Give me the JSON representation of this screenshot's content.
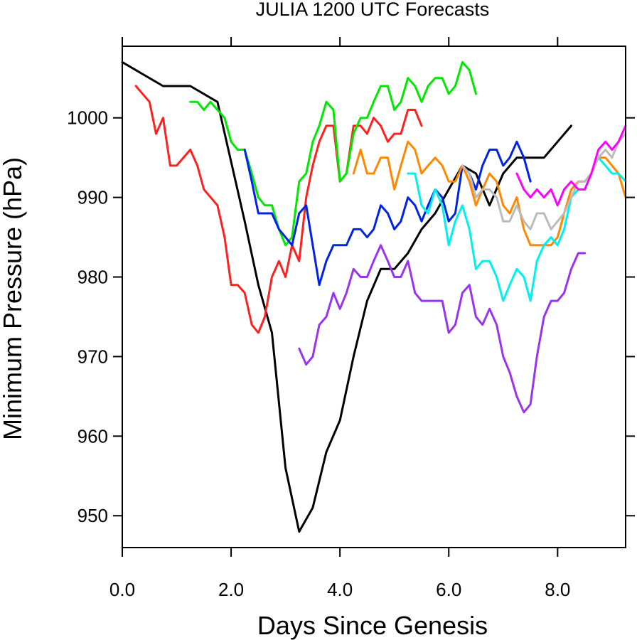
{
  "chart_data": {
    "type": "line",
    "title": "JULIA 1200 UTC Forecasts",
    "xlabel": "Days Since Genesis",
    "ylabel": "Minimum Pressure (hPa)",
    "xlim": [
      0,
      9.25
    ],
    "ylim": [
      946,
      1009
    ],
    "x_ticks": [
      "0.0",
      "2.0",
      "4.0",
      "6.0",
      "8.0"
    ],
    "y_ticks": [
      "950",
      "960",
      "970",
      "980",
      "990",
      "1000"
    ],
    "grid": false,
    "legend": "none",
    "series": [
      {
        "color": "#000000",
        "x": [
          0,
          0.75,
          1.25,
          1.75,
          2.25,
          2.5,
          2.75,
          3.0,
          3.25,
          3.5,
          3.75,
          4.0,
          4.25,
          4.5,
          4.75,
          5.0,
          5.25,
          5.5,
          5.75,
          6.0,
          6.25,
          6.5,
          6.75,
          7.0,
          7.25,
          7.5,
          7.75,
          8.0,
          8.25
        ],
        "y": [
          1007,
          1004,
          1004,
          1002,
          987,
          979,
          973,
          956,
          948,
          951,
          958,
          962,
          970,
          977,
          981,
          981,
          983,
          986,
          988,
          991,
          994,
          993,
          989,
          993,
          995,
          995,
          995,
          997,
          999
        ]
      },
      {
        "color": "#ff2020",
        "x": [
          0.25,
          0.5,
          0.62,
          0.75,
          0.88,
          1.0,
          1.25,
          1.38,
          1.5,
          1.75,
          1.88,
          2.0,
          2.12,
          2.25,
          2.38,
          2.5,
          2.62,
          2.75,
          2.88,
          3.0,
          3.12,
          3.25,
          3.38,
          3.5,
          3.62,
          3.75,
          3.88,
          4.0,
          4.12,
          4.25,
          4.38,
          4.5,
          4.62,
          4.75,
          4.88,
          5.0,
          5.12,
          5.25,
          5.38,
          5.5
        ],
        "y": [
          1004,
          1002,
          998,
          1000,
          994,
          994,
          996,
          994,
          991,
          989,
          985,
          979,
          979,
          978,
          974,
          973,
          975,
          980,
          982,
          980,
          984,
          982,
          990,
          994,
          997,
          999,
          999,
          992,
          993,
          999,
          999,
          998,
          1000,
          999,
          997,
          998,
          998,
          1001,
          1001,
          999
        ]
      },
      {
        "color": "#00e800",
        "x": [
          1.25,
          1.38,
          1.5,
          1.62,
          1.75,
          1.88,
          2.0,
          2.12,
          2.25,
          2.38,
          2.5,
          2.62,
          2.75,
          2.88,
          3.0,
          3.12,
          3.25,
          3.38,
          3.5,
          3.62,
          3.75,
          3.88,
          4.0,
          4.12,
          4.25,
          4.38,
          4.5,
          4.62,
          4.75,
          4.88,
          5.0,
          5.12,
          5.25,
          5.38,
          5.5,
          5.62,
          5.75,
          5.88,
          6.0,
          6.12,
          6.25,
          6.38,
          6.5
        ],
        "y": [
          1002,
          1002,
          1001,
          1002,
          1001,
          1000,
          997,
          996,
          996,
          993,
          990,
          989,
          989,
          986,
          984,
          985,
          992,
          993,
          997,
          999,
          1002,
          1001,
          992,
          993,
          998,
          1000,
          1000,
          1002,
          1004,
          1004,
          1001,
          1002,
          1005,
          1004,
          1002,
          1004,
          1005,
          1005,
          1003,
          1004,
          1007,
          1006,
          1003
        ]
      },
      {
        "color": "#0022e8",
        "x": [
          2.25,
          2.38,
          2.5,
          2.62,
          2.75,
          2.88,
          3.0,
          3.12,
          3.25,
          3.38,
          3.5,
          3.62,
          3.75,
          3.88,
          4.0,
          4.12,
          4.25,
          4.38,
          4.5,
          4.62,
          4.75,
          4.88,
          5.0,
          5.12,
          5.25,
          5.38,
          5.5,
          5.62,
          5.75,
          5.88,
          6.0,
          6.12,
          6.25,
          6.38,
          6.5,
          6.62,
          6.75,
          6.88,
          7.0,
          7.12,
          7.25,
          7.38,
          7.5
        ],
        "y": [
          996,
          992,
          988,
          988,
          988,
          986,
          985,
          984,
          988,
          989,
          984,
          979,
          982,
          984,
          984,
          984,
          986,
          986,
          985,
          986,
          989,
          988,
          986,
          987,
          990,
          989,
          987,
          989,
          991,
          990,
          987,
          988,
          994,
          993,
          991,
          994,
          996,
          996,
          994,
          995,
          997,
          995,
          992
        ]
      },
      {
        "color": "#ff8800",
        "x": [
          4.25,
          4.38,
          4.5,
          4.62,
          4.75,
          4.88,
          5.0,
          5.12,
          5.25,
          5.38,
          5.5,
          5.62,
          5.75,
          5.88,
          6.0,
          6.12,
          6.25,
          6.38,
          6.5,
          6.62,
          6.75,
          6.88,
          7.0,
          7.12,
          7.25,
          7.38,
          7.5,
          7.62,
          7.75,
          7.88,
          8.0,
          8.12,
          8.25,
          8.38,
          8.5,
          8.62,
          8.75,
          8.88,
          9.0,
          9.12,
          9.25
        ],
        "y": [
          993,
          996,
          993,
          993,
          995,
          995,
          991,
          994,
          997,
          996,
          993,
          994,
          995,
          994,
          992,
          992,
          994,
          992,
          989,
          991,
          993,
          992,
          989,
          988,
          990,
          986,
          984,
          984,
          984,
          984,
          985,
          988,
          991,
          992,
          992,
          993,
          995,
          995,
          994,
          993,
          990
        ]
      },
      {
        "color": "#00f0f0",
        "x": [
          5.25,
          5.38,
          5.5,
          5.62,
          5.75,
          5.88,
          6.0,
          6.12,
          6.25,
          6.38,
          6.5,
          6.62,
          6.75,
          6.88,
          7.0,
          7.12,
          7.25,
          7.38,
          7.5,
          7.62,
          7.75,
          7.88,
          8.0,
          8.12,
          8.25,
          8.38,
          8.5,
          8.62,
          8.75,
          8.88,
          9.0,
          9.12,
          9.25
        ],
        "y": [
          993,
          993,
          989,
          988,
          991,
          989,
          984,
          987,
          989,
          986,
          981,
          982,
          982,
          980,
          977,
          979,
          981,
          980,
          977,
          982,
          984,
          985,
          984,
          986,
          990,
          991,
          991,
          993,
          995,
          994,
          993,
          993,
          992
        ]
      },
      {
        "color": "#9933ee",
        "x": [
          3.25,
          3.38,
          3.5,
          3.62,
          3.75,
          3.88,
          4.0,
          4.12,
          4.25,
          4.38,
          4.5,
          4.62,
          4.75,
          4.88,
          5.0,
          5.12,
          5.25,
          5.38,
          5.5,
          5.62,
          5.75,
          5.88,
          6.0,
          6.12,
          6.25,
          6.38,
          6.5,
          6.62,
          6.75,
          6.88,
          7.0,
          7.12,
          7.25,
          7.38,
          7.5,
          7.62,
          7.75,
          7.88,
          8.0,
          8.12,
          8.25,
          8.38,
          8.5
        ],
        "y": [
          971,
          969,
          970,
          974,
          975,
          978,
          976,
          978,
          981,
          980,
          980,
          982,
          984,
          982,
          980,
          980,
          982,
          978,
          977,
          977,
          977,
          977,
          973,
          974,
          978,
          979,
          975,
          974,
          976,
          974,
          970,
          968,
          965,
          963,
          964,
          970,
          975,
          977,
          977,
          978,
          981,
          983,
          983
        ]
      },
      {
        "color": "#bbbbbb",
        "x": [
          6.25,
          6.38,
          6.5,
          6.62,
          6.75,
          6.88,
          7.0,
          7.12,
          7.25,
          7.38,
          7.5,
          7.62,
          7.75,
          7.88,
          8.0,
          8.12,
          8.25,
          8.38,
          8.5,
          8.62,
          8.75,
          8.88,
          9.0,
          9.12,
          9.25
        ],
        "y": [
          994,
          993,
          990,
          991,
          991,
          990,
          987,
          987,
          989,
          987,
          986,
          988,
          988,
          986,
          987,
          988,
          990,
          992,
          992,
          993,
          995,
          996,
          995,
          997,
          998
        ]
      },
      {
        "color": "#ff00ff",
        "x": [
          7.25,
          7.38,
          7.5,
          7.62,
          7.75,
          7.88,
          8.0,
          8.12,
          8.25,
          8.38,
          8.5,
          8.62,
          8.75,
          8.88,
          9.0,
          9.12,
          9.25
        ],
        "y": [
          993,
          991,
          990,
          991,
          990,
          991,
          989,
          991,
          992,
          991,
          991,
          993,
          996,
          997,
          996,
          997,
          999
        ]
      }
    ]
  }
}
